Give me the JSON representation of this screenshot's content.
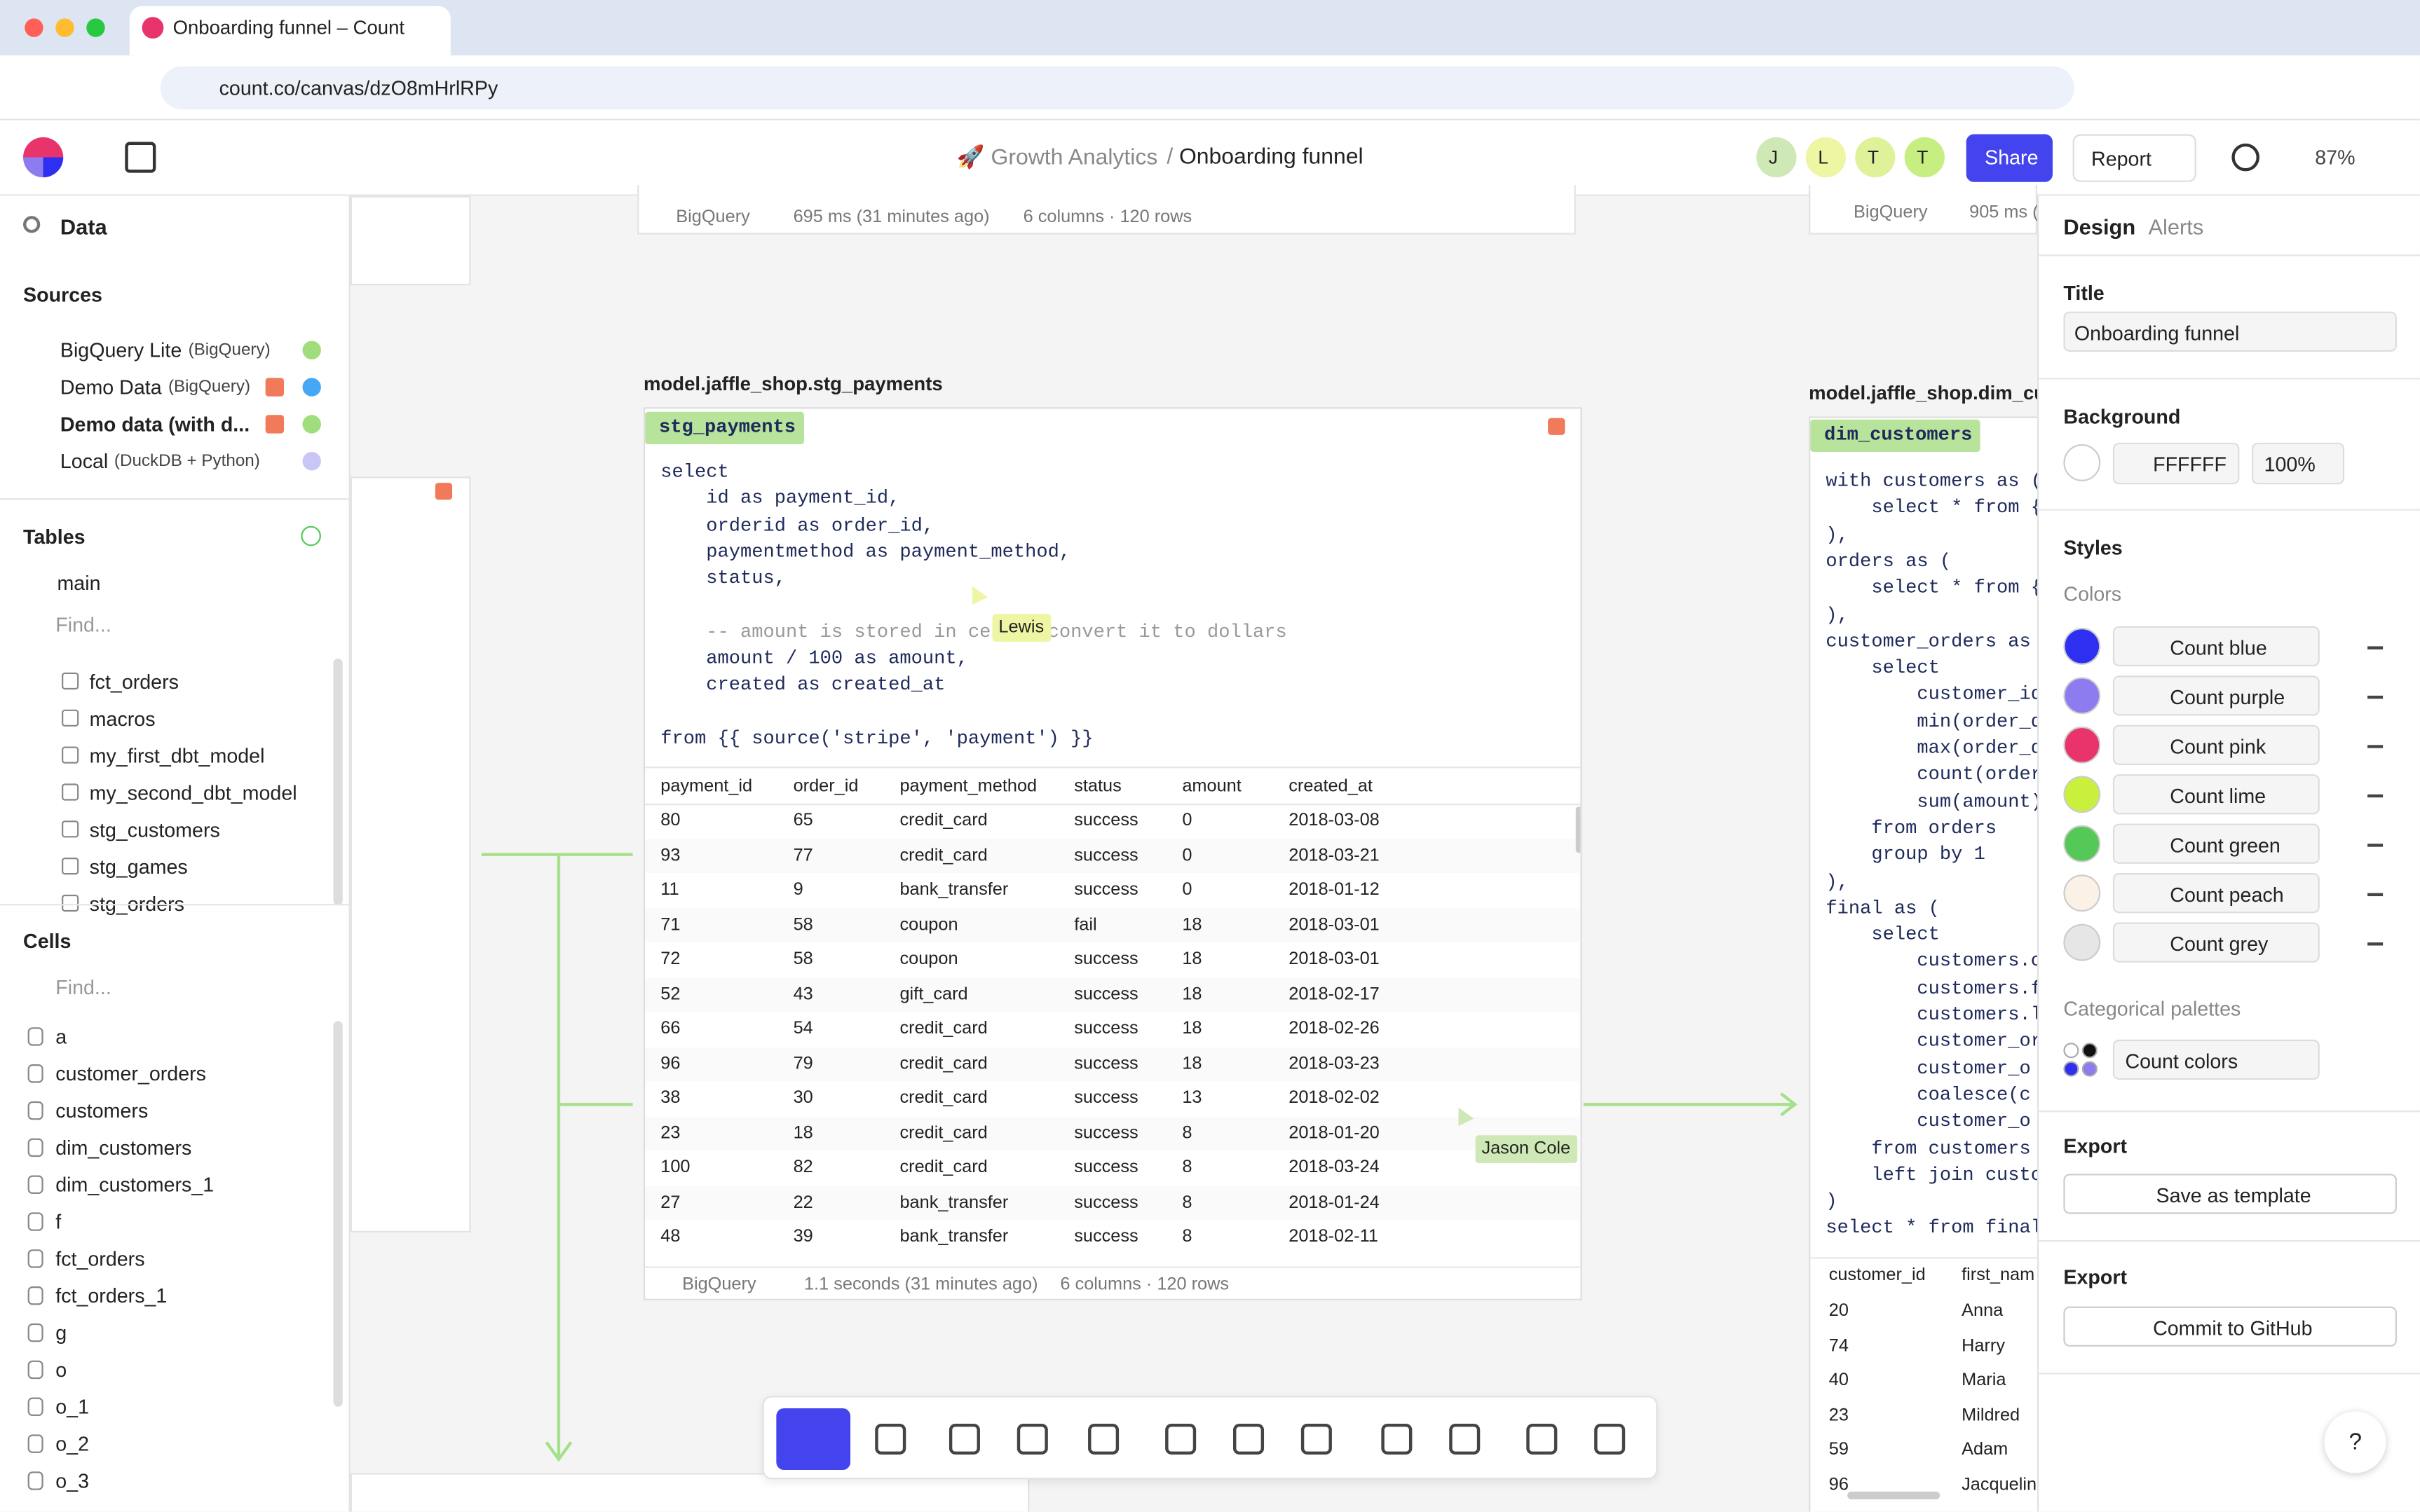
{
  "browser": {
    "tab_title": "Onboarding funnel – Count",
    "url": "count.co/canvas/dzO8mHrlRPy"
  },
  "header": {
    "project": "🚀 Growth Analytics",
    "separator": "/",
    "page": "Onboarding funnel",
    "avatars": [
      "J",
      "L",
      "T",
      "T"
    ],
    "share": "Share",
    "report": "Report",
    "zoom": "87%"
  },
  "sidebar": {
    "search": "Data",
    "sources_title": "Sources",
    "sources": [
      {
        "name": "BigQuery Lite",
        "detail": "(BigQuery)"
      },
      {
        "name": "Demo Data",
        "detail": "(BigQuery)"
      },
      {
        "name": "Demo data (with d...",
        "detail": ""
      },
      {
        "name": "Local",
        "detail": "(DuckDB + Python)"
      }
    ],
    "tables_title": "Tables",
    "branch": "main",
    "tables_find": "Find...",
    "tables": [
      "fct_orders",
      "macros",
      "my_first_dbt_model",
      "my_second_dbt_model",
      "stg_customers",
      "stg_games",
      "stg_orders"
    ],
    "cells_title": "Cells",
    "cells_find": "Find...",
    "cells": [
      "a",
      "customer_orders",
      "customers",
      "dim_customers",
      "dim_customers_1",
      "f",
      "fct_orders",
      "fct_orders_1",
      "g",
      "o",
      "o_1",
      "o_2",
      "o_3"
    ]
  },
  "canvas": {
    "top_meta": [
      "BigQuery",
      "695 ms (31 minutes ago)",
      "6 columns · 120 rows"
    ],
    "top_right_meta": [
      "BigQuery",
      "905 ms ("
    ],
    "stg": {
      "label": "model.jaffle_shop.stg_payments",
      "tag": "stg_payments",
      "code": [
        "select",
        "    id as payment_id,",
        "    orderid as order_id,",
        "    paymentmethod as payment_method,",
        "    status,",
        "",
        "    -- amount is stored in cents, convert it to dollars",
        "    amount / 100 as amount,",
        "    created as created_at",
        "",
        "from {{ source('stripe', 'payment') }}"
      ],
      "columns": [
        "payment_id",
        "order_id",
        "payment_method",
        "status",
        "amount",
        "created_at"
      ],
      "rows": [
        [
          80,
          65,
          "credit_card",
          "success",
          0,
          "2018-03-08"
        ],
        [
          93,
          77,
          "credit_card",
          "success",
          0,
          "2018-03-21"
        ],
        [
          11,
          9,
          "bank_transfer",
          "success",
          0,
          "2018-01-12"
        ],
        [
          71,
          58,
          "coupon",
          "fail",
          18,
          "2018-03-01"
        ],
        [
          72,
          58,
          "coupon",
          "success",
          18,
          "2018-03-01"
        ],
        [
          52,
          43,
          "gift_card",
          "success",
          18,
          "2018-02-17"
        ],
        [
          66,
          54,
          "credit_card",
          "success",
          18,
          "2018-02-26"
        ],
        [
          96,
          79,
          "credit_card",
          "success",
          18,
          "2018-03-23"
        ],
        [
          38,
          30,
          "credit_card",
          "success",
          13,
          "2018-02-02"
        ],
        [
          23,
          18,
          "credit_card",
          "success",
          8,
          "2018-01-20"
        ],
        [
          100,
          82,
          "credit_card",
          "success",
          8,
          "2018-03-24"
        ],
        [
          27,
          22,
          "bank_transfer",
          "success",
          8,
          "2018-01-24"
        ],
        [
          48,
          39,
          "bank_transfer",
          "success",
          8,
          "2018-02-11"
        ]
      ],
      "meta": [
        "BigQuery",
        "1.1 seconds (31 minutes ago)",
        "6 columns · 120 rows"
      ]
    },
    "dim": {
      "label": "model.jaffle_shop.dim_cu",
      "tag": "dim_customers",
      "code": [
        "with customers as (",
        "    select * from {{",
        "),",
        "orders as (",
        "    select * from {{",
        "),",
        "customer_orders as (",
        "    select",
        "        customer_id,",
        "        min(order_da",
        "        max(order_da",
        "        count(order_",
        "        sum(amount)",
        "    from orders",
        "    group by 1",
        "),",
        "final as (",
        "    select",
        "        customers.cu",
        "        customers.fi",
        "        customers.la",
        "        customer_ord",
        "        customer_o",
        "        coalesce(c",
        "        customer_o",
        "    from customers",
        "    left join custom",
        ")",
        "select * from final"
      ],
      "columns": [
        "customer_id",
        "first_nam"
      ],
      "rows": [
        [
          20,
          "Anna"
        ],
        [
          74,
          "Harry"
        ],
        [
          40,
          "Maria"
        ],
        [
          23,
          "Mildred"
        ],
        [
          59,
          "Adam"
        ],
        [
          96,
          "Jacquelin"
        ]
      ]
    },
    "cursors": [
      "Lewis",
      "Jason Cole"
    ]
  },
  "panel": {
    "tabs": [
      "Design",
      "Alerts"
    ],
    "title_label": "Title",
    "title_value": "Onboarding funnel",
    "background_label": "Background",
    "background_hex": "FFFFFF",
    "background_opacity": "100%",
    "styles_title": "Styles",
    "colors_title": "Colors",
    "colors": [
      {
        "name": "Count blue",
        "color": "#2f2ff2"
      },
      {
        "name": "Count purple",
        "color": "#8c7cf0"
      },
      {
        "name": "Count pink",
        "color": "#e8336b"
      },
      {
        "name": "Count lime",
        "color": "#c8f03c"
      },
      {
        "name": "Count green",
        "color": "#55c957"
      },
      {
        "name": "Count peach",
        "color": "#fbf1e7"
      },
      {
        "name": "Count grey",
        "color": "#e6e6e6"
      }
    ],
    "palettes_title": "Categorical palettes",
    "palette": "Count colors",
    "export1": "Export",
    "save_template": "Save as template",
    "export2": "Export",
    "commit": "Commit to GitHub",
    "help": "?"
  }
}
